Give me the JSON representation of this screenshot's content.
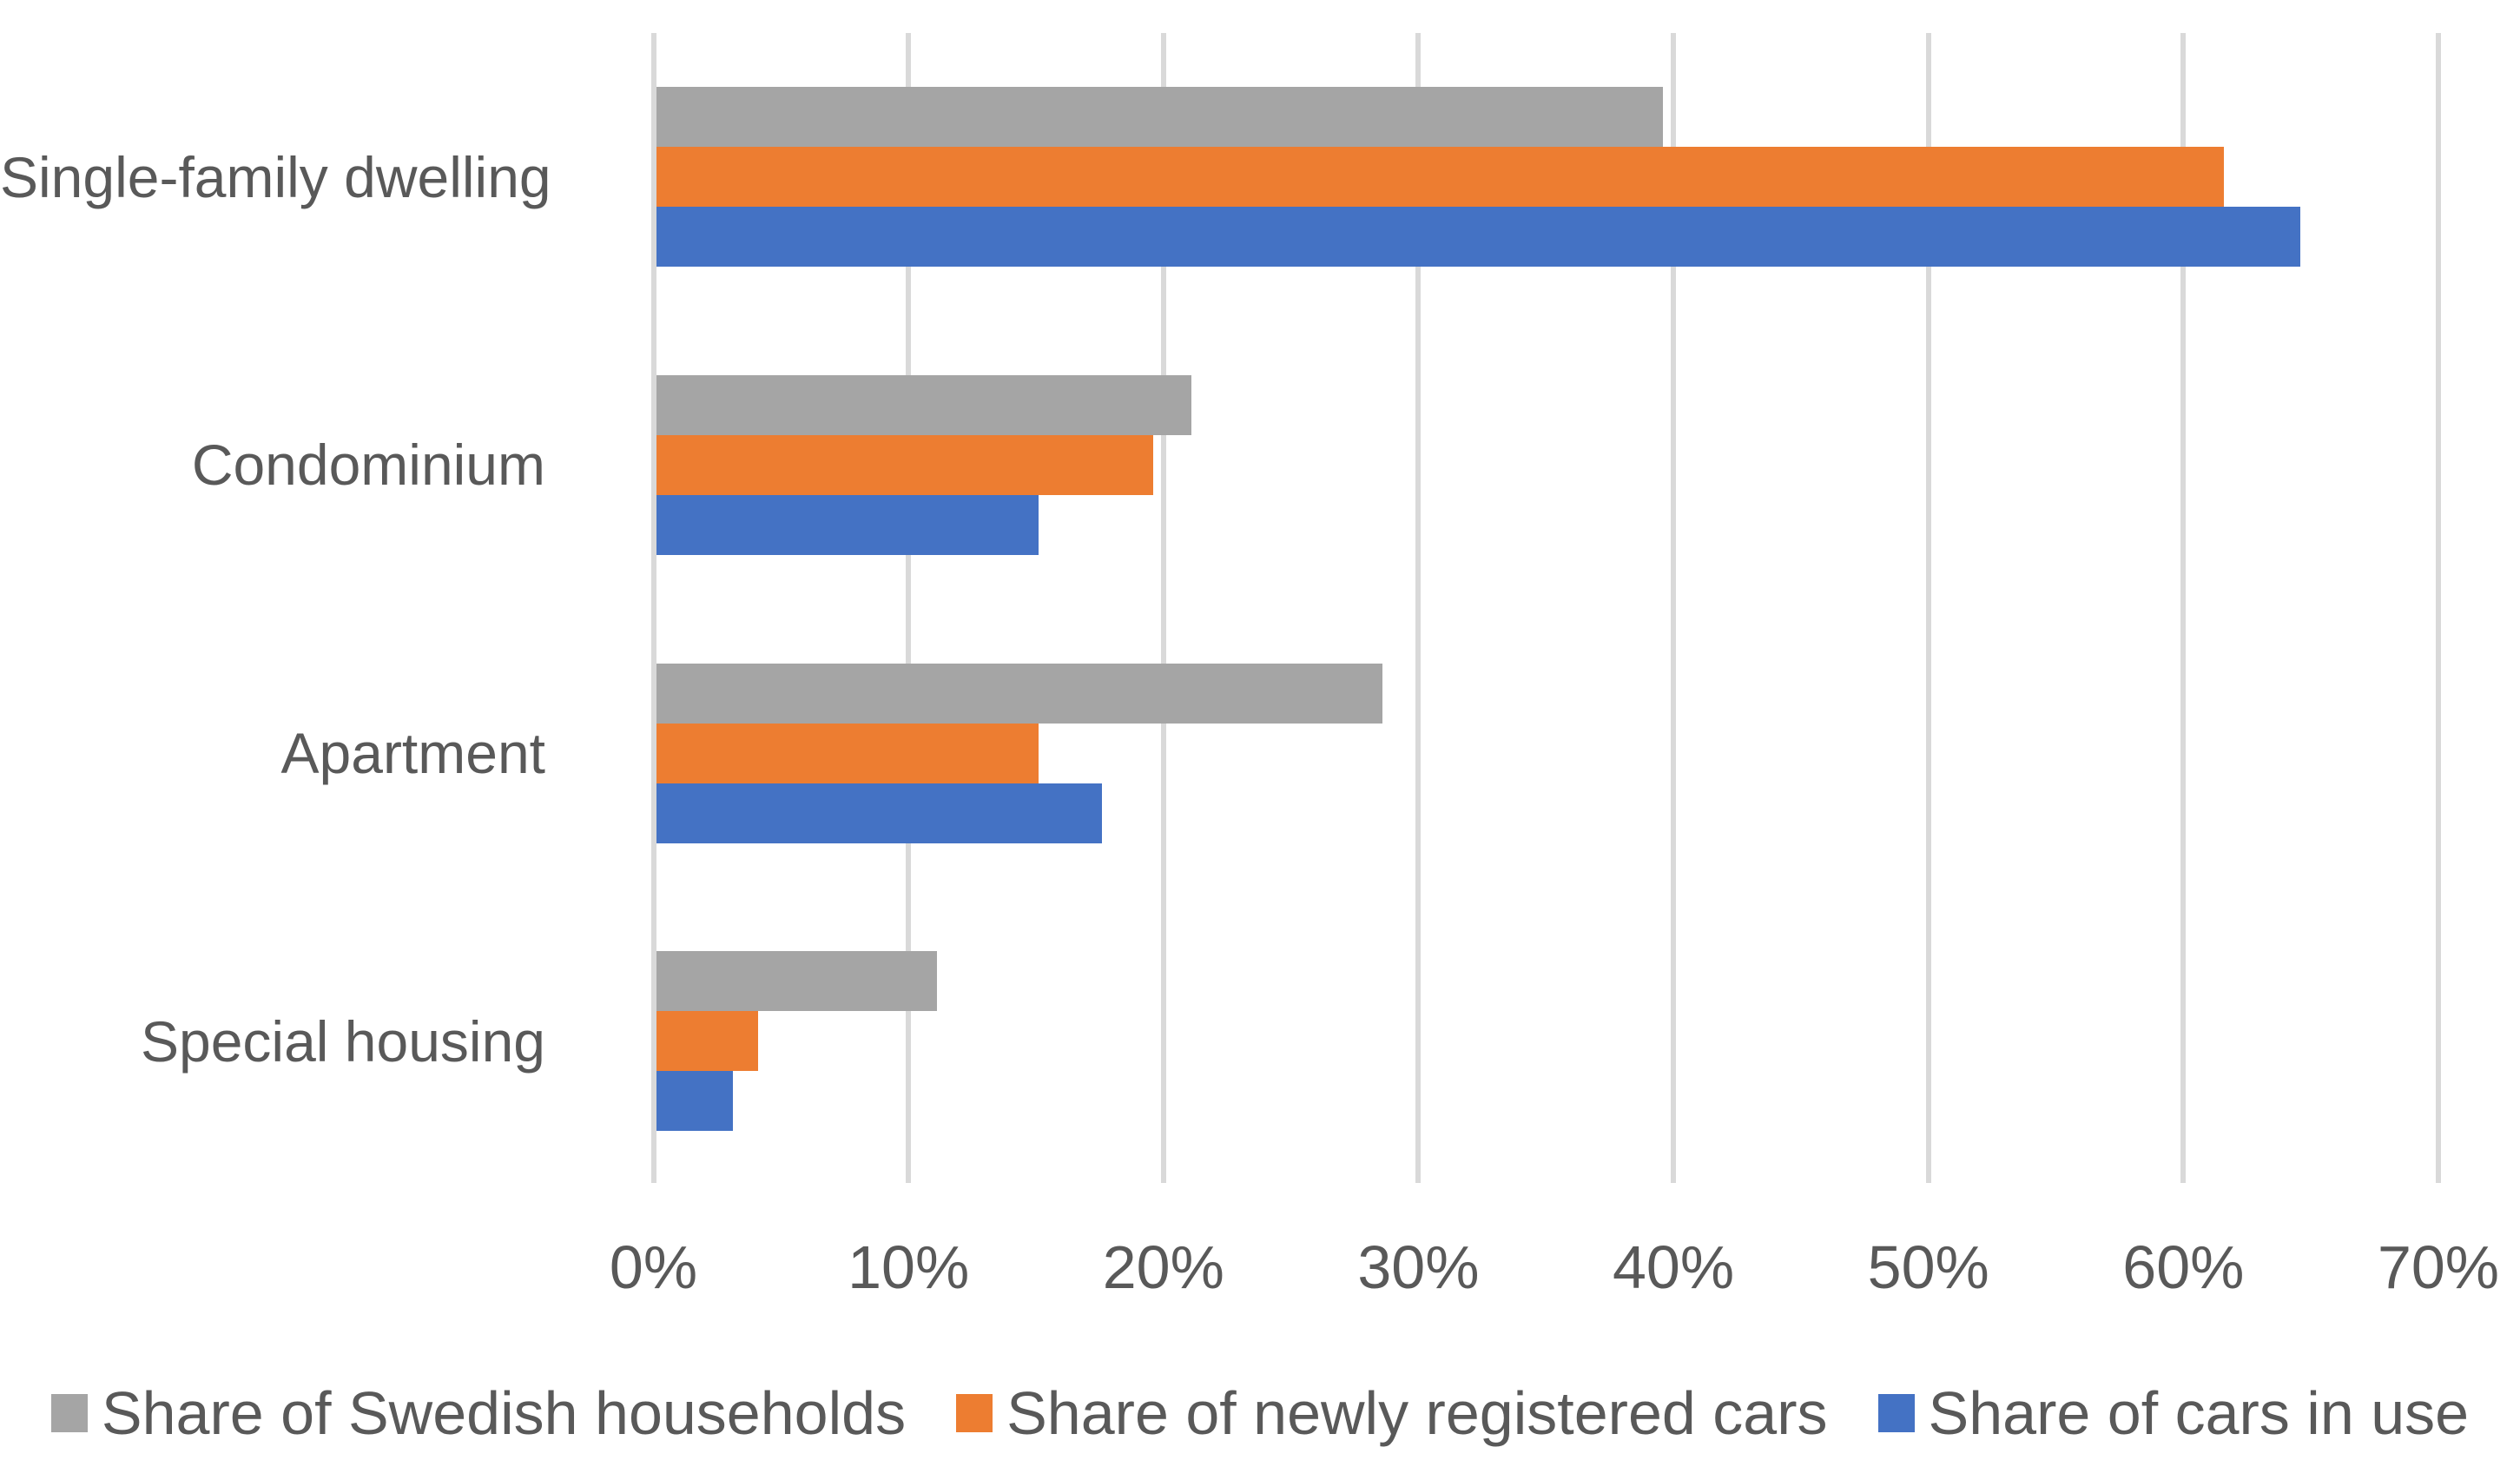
{
  "chart_data": {
    "type": "bar",
    "orientation": "horizontal",
    "title": "",
    "categories": [
      "Single-family dwelling",
      "Condominium",
      "Apartment",
      "Special housing"
    ],
    "series": [
      {
        "name": "Share of Swedish households",
        "color": "#A5A5A5",
        "values": [
          39.5,
          21.0,
          28.5,
          11.0
        ]
      },
      {
        "name": "Share of newly registered cars",
        "color": "#ED7D31",
        "values": [
          61.5,
          19.5,
          15.0,
          4.0
        ]
      },
      {
        "name": "Share of cars in use",
        "color": "#4472C4",
        "values": [
          64.5,
          15.0,
          17.5,
          3.0
        ]
      }
    ],
    "x_axis": {
      "min": 0,
      "max": 70,
      "unit": "%",
      "ticks": [
        "0%",
        "10%",
        "20%",
        "30%",
        "40%",
        "50%",
        "60%",
        "70%"
      ]
    },
    "grid": true,
    "legend_position": "bottom",
    "colors": {
      "gridline": "#D9D9D9",
      "label_text": "#595959",
      "background": "#FFFFFF"
    }
  }
}
